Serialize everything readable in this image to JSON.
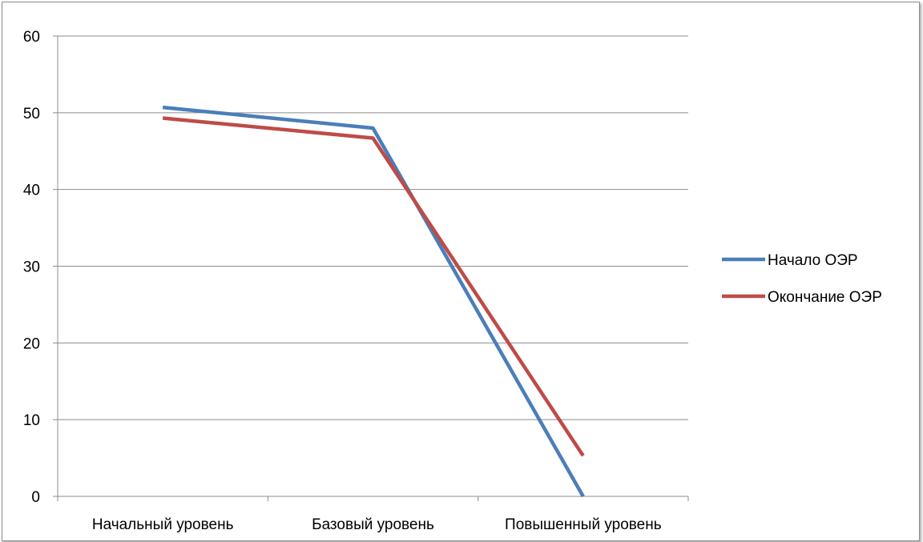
{
  "chart_data": {
    "type": "line",
    "categories": [
      "Начальный уровень",
      "Базовый уровень",
      "Повышенный уровень"
    ],
    "series": [
      {
        "name": "Начало ОЭР",
        "values": [
          50.7,
          48.0,
          0
        ],
        "color": "#4a7ebb"
      },
      {
        "name": "Окончание ОЭР",
        "values": [
          49.3,
          46.7,
          5.3
        ],
        "color": "#be4b48"
      }
    ],
    "ylim": [
      0,
      60
    ],
    "yticks": [
      0,
      10,
      20,
      30,
      40,
      50,
      60
    ],
    "grid": true,
    "legend": "right",
    "title": "",
    "xlabel": "",
    "ylabel": ""
  }
}
